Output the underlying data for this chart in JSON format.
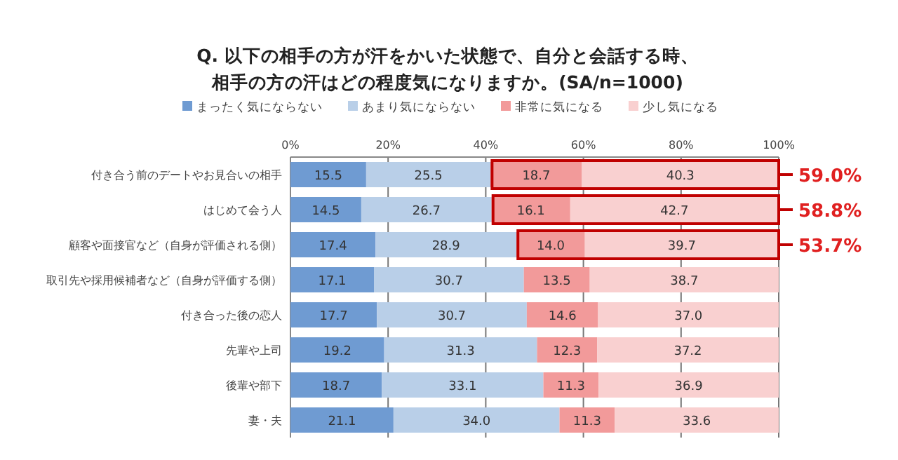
{
  "chart_data": {
    "type": "bar",
    "orientation": "horizontal",
    "stacked": true,
    "legend": "top",
    "grid": "x",
    "title": "Q. 以下の相手の方が汗をかいた状態で、自分と会話する時、相手の方の汗はどの程度気になりますか。(SA/n=1000)",
    "categories": [
      "付き合う前のデートやお見合いの相手",
      "はじめて会う人",
      "顧客や面接官など（自身が評価される側）",
      "取引先や採用候補者など（自身が評価する側）",
      "付き合った後の恋人",
      "先輩や上司",
      "後輩や部下",
      "妻・夫"
    ],
    "series": [
      {
        "name": "まったく気にならない",
        "color": "#6f9bd2",
        "values": [
          15.5,
          14.5,
          17.4,
          17.1,
          17.7,
          19.2,
          18.7,
          21.1
        ],
        "value_labels": [
          "15.5",
          "14.5",
          "17.4",
          "17.1",
          "17.7",
          "19.2",
          "18.7",
          "21.1"
        ]
      },
      {
        "name": "あまり気にならない",
        "color": "#b9cfe8",
        "values": [
          25.5,
          26.7,
          28.9,
          30.7,
          30.7,
          31.3,
          33.1,
          34.0
        ],
        "value_labels": [
          "25.5",
          "26.7",
          "28.9",
          "30.7",
          "30.7",
          "31.3",
          "33.1",
          "34.0"
        ]
      },
      {
        "name": "非常に気になる",
        "color": "#f29a9a",
        "values": [
          18.7,
          16.1,
          14.0,
          13.5,
          14.6,
          12.3,
          11.3,
          11.3
        ],
        "value_labels": [
          "18.7",
          "16.1",
          "14.0",
          "13.5",
          "14.6",
          "12.3",
          "11.3",
          "11.3"
        ]
      },
      {
        "name": "少し気になる",
        "color": "#f9d0d0",
        "values": [
          40.3,
          42.7,
          39.7,
          38.7,
          37.0,
          37.2,
          36.9,
          33.6
        ],
        "value_labels": [
          "40.3",
          "42.7",
          "39.7",
          "38.7",
          "37.0",
          "37.2",
          "36.9",
          "33.6"
        ]
      }
    ],
    "xlim": [
      0,
      100
    ],
    "xticks": [
      {
        "value": 0,
        "label": "0%"
      },
      {
        "value": 20,
        "label": "20%"
      },
      {
        "value": 40,
        "label": "40%"
      },
      {
        "value": 60,
        "label": "60%"
      },
      {
        "value": 80,
        "label": "80%"
      },
      {
        "value": 100,
        "label": "100%"
      }
    ],
    "annotations": [
      "59.0%",
      "58.8%",
      "53.7%"
    ]
  }
}
